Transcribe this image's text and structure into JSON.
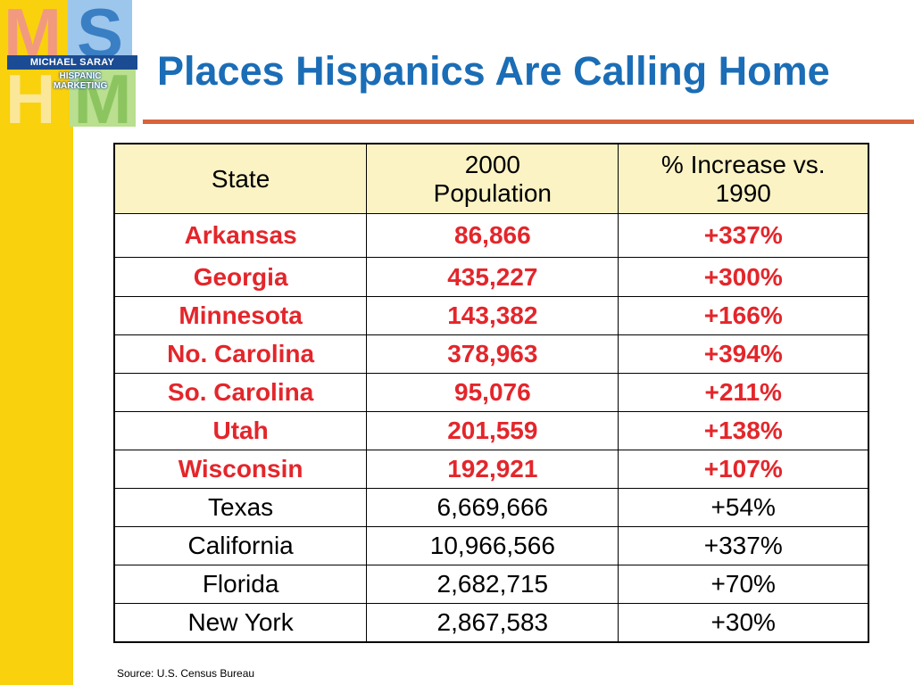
{
  "logo": {
    "letters": [
      "M",
      "S",
      "H",
      "M"
    ],
    "band_text": "MICHAEL SARAY",
    "sub_line1": "HISPANIC",
    "sub_line2": "MARKETING"
  },
  "title": "Places Hispanics Are Calling Home",
  "colors": {
    "title": "#1a6db6",
    "rule": "#d9643a",
    "stripe": "#f9d10d",
    "header_bg": "#fbf3c4",
    "highlight_text": "#e3262b"
  },
  "table": {
    "headers": [
      "State",
      "2000\nPopulation",
      "% Increase vs.\n1990"
    ],
    "rows": [
      {
        "state": "Arkansas",
        "population": "86,866",
        "increase": "+337%",
        "highlight": true
      },
      {
        "state": "Georgia",
        "population": "435,227",
        "increase": "+300%",
        "highlight": true
      },
      {
        "state": "Minnesota",
        "population": "143,382",
        "increase": "+166%",
        "highlight": true
      },
      {
        "state": "No. Carolina",
        "population": "378,963",
        "increase": "+394%",
        "highlight": true
      },
      {
        "state": "So. Carolina",
        "population": "95,076",
        "increase": "+211%",
        "highlight": true
      },
      {
        "state": "Utah",
        "population": "201,559",
        "increase": "+138%",
        "highlight": true
      },
      {
        "state": "Wisconsin",
        "population": "192,921",
        "increase": "+107%",
        "highlight": true
      },
      {
        "state": "Texas",
        "population": "6,669,666",
        "increase": "+54%",
        "highlight": false
      },
      {
        "state": "California",
        "population": "10,966,566",
        "increase": "+337%",
        "highlight": false
      },
      {
        "state": "Florida",
        "population": "2,682,715",
        "increase": "+70%",
        "highlight": false
      },
      {
        "state": "New York",
        "population": "2,867,583",
        "increase": "+30%",
        "highlight": false
      }
    ]
  },
  "source": "Source: U.S. Census Bureau"
}
